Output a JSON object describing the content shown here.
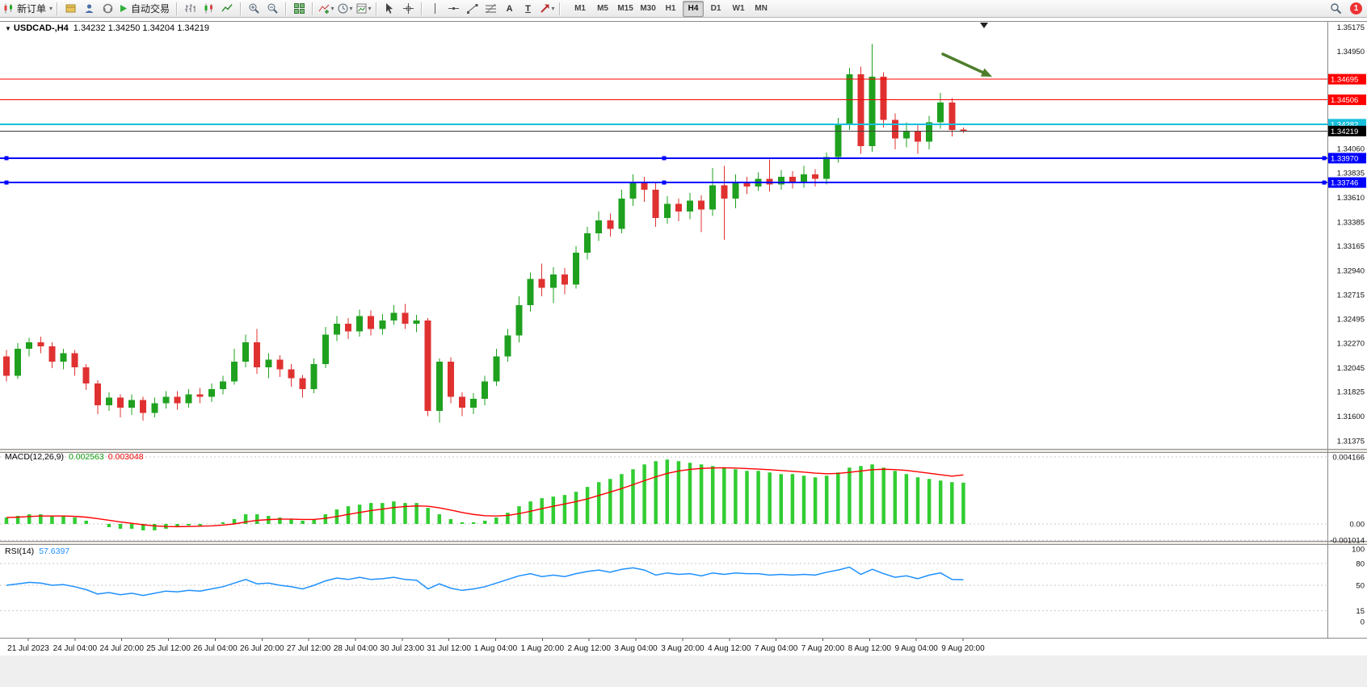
{
  "toolbar": {
    "new_order_label": "新订单",
    "auto_trading_label": "自动交易",
    "timeframes": [
      "M1",
      "M5",
      "M15",
      "M30",
      "H1",
      "H4",
      "D1",
      "W1",
      "MN"
    ],
    "active_timeframe": "H4",
    "notification_count": "1"
  },
  "chart": {
    "symbol_title": "USDCAD-,H4",
    "ohlc_text": "1.34232 1.34250 1.34204 1.34219"
  },
  "indicators": {
    "macd": {
      "label": "MACD(12,26,9)",
      "main_value": "0.002563",
      "signal_value": "0.003048",
      "axis_labels": [
        "0.004166",
        "0.00",
        "-0.001014"
      ],
      "axis_values": [
        0.004166,
        0,
        -0.001014
      ]
    },
    "rsi": {
      "label": "RSI(14)",
      "value": "57.6397",
      "axis_labels": [
        "100",
        "80",
        "50",
        "15",
        "0"
      ],
      "axis_values": [
        100,
        80,
        50,
        15,
        0
      ],
      "levels": [
        80,
        50,
        15
      ]
    }
  },
  "chart_data": {
    "type": "candlestick",
    "symbol": "USDCAD-",
    "timeframe": "H4",
    "price_axis": {
      "visible_min": 1.313,
      "visible_max": 1.35215,
      "grid_labels": [
        "1.35175",
        "1.34950",
        "1.34060",
        "1.33835",
        "1.33610",
        "1.33385",
        "1.33165",
        "1.32940",
        "1.32715",
        "1.32495",
        "1.32270",
        "1.32045",
        "1.31825",
        "1.31600",
        "1.31375"
      ],
      "grid_values": [
        1.35175,
        1.3495,
        1.3406,
        1.33835,
        1.3361,
        1.33385,
        1.33165,
        1.3294,
        1.32715,
        1.32495,
        1.3227,
        1.32045,
        1.31825,
        1.316,
        1.31375
      ]
    },
    "time_labels": [
      "21 Jul 2023",
      "24 Jul 04:00",
      "24 Jul 20:00",
      "25 Jul 12:00",
      "26 Jul 04:00",
      "26 Jul 20:00",
      "27 Jul 12:00",
      "28 Jul 04:00",
      "30 Jul 23:00",
      "31 Jul 12:00",
      "1 Aug 04:00",
      "1 Aug 20:00",
      "2 Aug 12:00",
      "3 Aug 04:00",
      "3 Aug 20:00",
      "4 Aug 12:00",
      "7 Aug 04:00",
      "7 Aug 20:00",
      "8 Aug 12:00",
      "9 Aug 04:00",
      "9 Aug 20:00"
    ],
    "hlines": [
      {
        "price": 1.34695,
        "label": "1.34695",
        "color": "#ff0000",
        "width": 1,
        "handles": false
      },
      {
        "price": 1.34506,
        "label": "1.34506",
        "color": "#ff0000",
        "width": 1,
        "handles": false
      },
      {
        "price": 1.34282,
        "label": "1.34282",
        "color": "#17bfdc",
        "width": 2,
        "handles": false
      },
      {
        "price": 1.34219,
        "label": "1.34219",
        "color": "#3c3c3c",
        "width": 1,
        "handles": false,
        "tag": "#000000",
        "is_current": true
      },
      {
        "price": 1.3397,
        "label": "1.33970",
        "color": "#0000ff",
        "width": 2,
        "handles": true
      },
      {
        "price": 1.33746,
        "label": "1.33746",
        "color": "#0000ff",
        "width": 2,
        "handles": true
      }
    ],
    "candles_ohlc": [
      [
        1.3215,
        1.3221,
        1.3192,
        1.3197
      ],
      [
        1.3197,
        1.3227,
        1.3194,
        1.3222
      ],
      [
        1.3222,
        1.3232,
        1.3215,
        1.3228
      ],
      [
        1.3228,
        1.3233,
        1.3218,
        1.3224
      ],
      [
        1.3224,
        1.3228,
        1.3204,
        1.321
      ],
      [
        1.321,
        1.3222,
        1.3203,
        1.3218
      ],
      [
        1.3218,
        1.3221,
        1.3197,
        1.3205
      ],
      [
        1.3205,
        1.3208,
        1.3184,
        1.319
      ],
      [
        1.319,
        1.3193,
        1.3162,
        1.317
      ],
      [
        1.317,
        1.3182,
        1.3165,
        1.3177
      ],
      [
        1.3177,
        1.318,
        1.3159,
        1.3168
      ],
      [
        1.3168,
        1.318,
        1.3161,
        1.3175
      ],
      [
        1.3175,
        1.3178,
        1.3156,
        1.3163
      ],
      [
        1.3163,
        1.3177,
        1.3159,
        1.3172
      ],
      [
        1.3172,
        1.3183,
        1.3167,
        1.3178
      ],
      [
        1.3178,
        1.3183,
        1.3166,
        1.3172
      ],
      [
        1.3172,
        1.3185,
        1.3168,
        1.318
      ],
      [
        1.318,
        1.3186,
        1.3172,
        1.3178
      ],
      [
        1.3178,
        1.319,
        1.3173,
        1.3185
      ],
      [
        1.3185,
        1.3197,
        1.318,
        1.3192
      ],
      [
        1.3192,
        1.3222,
        1.3189,
        1.321
      ],
      [
        1.321,
        1.3235,
        1.3205,
        1.3228
      ],
      [
        1.3228,
        1.324,
        1.3199,
        1.3205
      ],
      [
        1.3205,
        1.3218,
        1.3195,
        1.3212
      ],
      [
        1.3212,
        1.3216,
        1.3196,
        1.3203
      ],
      [
        1.3203,
        1.3208,
        1.3187,
        1.3195
      ],
      [
        1.3195,
        1.3198,
        1.3177,
        1.3185
      ],
      [
        1.3185,
        1.3213,
        1.3181,
        1.3208
      ],
      [
        1.3208,
        1.3242,
        1.3204,
        1.3235
      ],
      [
        1.3235,
        1.3252,
        1.3229,
        1.3245
      ],
      [
        1.3245,
        1.325,
        1.3231,
        1.3238
      ],
      [
        1.3238,
        1.3258,
        1.3233,
        1.3252
      ],
      [
        1.3252,
        1.3257,
        1.3234,
        1.324
      ],
      [
        1.324,
        1.3254,
        1.3235,
        1.3248
      ],
      [
        1.3248,
        1.3262,
        1.3244,
        1.3255
      ],
      [
        1.3255,
        1.3263,
        1.324,
        1.3245
      ],
      [
        1.3245,
        1.3253,
        1.3237,
        1.3248
      ],
      [
        1.3248,
        1.325,
        1.316,
        1.3165
      ],
      [
        1.3165,
        1.3213,
        1.3154,
        1.321
      ],
      [
        1.321,
        1.3214,
        1.3172,
        1.3178
      ],
      [
        1.3178,
        1.3182,
        1.316,
        1.3168
      ],
      [
        1.3168,
        1.3181,
        1.3162,
        1.3176
      ],
      [
        1.3176,
        1.3197,
        1.317,
        1.3192
      ],
      [
        1.3192,
        1.3222,
        1.3188,
        1.3215
      ],
      [
        1.3215,
        1.324,
        1.321,
        1.3234
      ],
      [
        1.3234,
        1.327,
        1.3228,
        1.3262
      ],
      [
        1.3262,
        1.3292,
        1.3256,
        1.3286
      ],
      [
        1.3286,
        1.33,
        1.327,
        1.3278
      ],
      [
        1.3278,
        1.3297,
        1.3264,
        1.329
      ],
      [
        1.329,
        1.3296,
        1.3272,
        1.3281
      ],
      [
        1.3281,
        1.3316,
        1.3277,
        1.331
      ],
      [
        1.331,
        1.3334,
        1.3304,
        1.3328
      ],
      [
        1.3328,
        1.3348,
        1.3321,
        1.334
      ],
      [
        1.334,
        1.3346,
        1.3325,
        1.3332
      ],
      [
        1.3332,
        1.3368,
        1.3328,
        1.336
      ],
      [
        1.336,
        1.3382,
        1.3353,
        1.3375
      ],
      [
        1.3375,
        1.338,
        1.3357,
        1.3368
      ],
      [
        1.3368,
        1.3374,
        1.3334,
        1.3342
      ],
      [
        1.3342,
        1.3362,
        1.3337,
        1.3355
      ],
      [
        1.3355,
        1.336,
        1.3339,
        1.3348
      ],
      [
        1.3348,
        1.3365,
        1.3341,
        1.3358
      ],
      [
        1.3358,
        1.3363,
        1.3329,
        1.335
      ],
      [
        1.335,
        1.3388,
        1.3344,
        1.3372
      ],
      [
        1.3372,
        1.339,
        1.3322,
        1.336
      ],
      [
        1.336,
        1.3382,
        1.3351,
        1.3375
      ],
      [
        1.3375,
        1.338,
        1.3364,
        1.3371
      ],
      [
        1.3371,
        1.3384,
        1.3367,
        1.3378
      ],
      [
        1.3378,
        1.3396,
        1.3366,
        1.3373
      ],
      [
        1.3373,
        1.3386,
        1.3368,
        1.338
      ],
      [
        1.338,
        1.3385,
        1.3369,
        1.3375
      ],
      [
        1.3375,
        1.339,
        1.337,
        1.3382
      ],
      [
        1.3382,
        1.3387,
        1.3371,
        1.3378
      ],
      [
        1.3378,
        1.3402,
        1.3373,
        1.3398
      ],
      [
        1.3398,
        1.3434,
        1.3393,
        1.3428
      ],
      [
        1.3428,
        1.348,
        1.3423,
        1.3474
      ],
      [
        1.3474,
        1.3481,
        1.3401,
        1.3408
      ],
      [
        1.3408,
        1.3502,
        1.3403,
        1.3472
      ],
      [
        1.3472,
        1.3476,
        1.3425,
        1.3432
      ],
      [
        1.3432,
        1.3438,
        1.3405,
        1.3415
      ],
      [
        1.3415,
        1.343,
        1.3407,
        1.3422
      ],
      [
        1.3422,
        1.3428,
        1.3401,
        1.3412
      ],
      [
        1.3412,
        1.3436,
        1.3405,
        1.343
      ],
      [
        1.343,
        1.3457,
        1.3424,
        1.3448
      ],
      [
        1.3448,
        1.3452,
        1.3417,
        1.3423
      ],
      [
        1.34232,
        1.3425,
        1.34204,
        1.34219
      ]
    ],
    "macd_main": [
      0.0004,
      0.0005,
      0.0006,
      0.0006,
      0.0005,
      0.0005,
      0.0004,
      0.0002,
      0.0,
      -0.0002,
      -0.0003,
      -0.0003,
      -0.0004,
      -0.0004,
      -0.0003,
      -0.0002,
      -0.0001,
      -0.0001,
      0.0,
      0.0001,
      0.0003,
      0.0006,
      0.0006,
      0.0005,
      0.0004,
      0.0003,
      0.0002,
      0.0003,
      0.0006,
      0.0009,
      0.0011,
      0.0012,
      0.0013,
      0.0013,
      0.0014,
      0.0013,
      0.0013,
      0.001,
      0.0006,
      0.0003,
      0.0001,
      0.0001,
      0.0002,
      0.0004,
      0.0007,
      0.0011,
      0.0014,
      0.0016,
      0.0017,
      0.0018,
      0.002,
      0.0023,
      0.0026,
      0.0028,
      0.0031,
      0.0034,
      0.0037,
      0.0039,
      0.004,
      0.0039,
      0.0038,
      0.0037,
      0.0036,
      0.0035,
      0.0034,
      0.0033,
      0.0033,
      0.0032,
      0.0031,
      0.0031,
      0.003,
      0.0029,
      0.003,
      0.0032,
      0.0035,
      0.0036,
      0.0037,
      0.0035,
      0.0033,
      0.0031,
      0.0029,
      0.0028,
      0.0027,
      0.0026,
      0.002563
    ],
    "macd_signal": [
      0.0004,
      0.00042,
      0.00046,
      0.00049,
      0.00049,
      0.00049,
      0.00047,
      0.00042,
      0.00033,
      0.00023,
      0.00012,
      4e-05,
      -5e-05,
      -0.00012,
      -0.00016,
      -0.00017,
      -0.00016,
      -0.00014,
      -0.00012,
      -7e-05,
      0.0,
      0.00012,
      0.00022,
      0.00027,
      0.0003,
      0.0003,
      0.00028,
      0.00028,
      0.00035,
      0.00046,
      0.00059,
      0.00071,
      0.00083,
      0.00092,
      0.00102,
      0.00108,
      0.00112,
      0.0011,
      0.001,
      0.00086,
      0.00071,
      0.00059,
      0.00051,
      0.00049,
      0.00053,
      0.00064,
      0.00079,
      0.00095,
      0.0011,
      0.00124,
      0.00139,
      0.00156,
      0.00177,
      0.00198,
      0.0022,
      0.00244,
      0.00269,
      0.00293,
      0.00314,
      0.00329,
      0.00339,
      0.00345,
      0.00348,
      0.00349,
      0.00347,
      0.00344,
      0.00341,
      0.00337,
      0.00332,
      0.00327,
      0.00322,
      0.00316,
      0.00312,
      0.00314,
      0.00321,
      0.00329,
      0.00337,
      0.0034,
      0.00338,
      0.00333,
      0.00324,
      0.00315,
      0.00306,
      0.00297,
      0.003048
    ],
    "rsi": [
      50,
      52,
      54,
      53,
      50,
      51,
      48,
      44,
      38,
      40,
      37,
      39,
      36,
      39,
      42,
      41,
      43,
      42,
      45,
      48,
      53,
      58,
      52,
      53,
      50,
      48,
      45,
      50,
      56,
      60,
      58,
      61,
      58,
      59,
      61,
      58,
      57,
      45,
      52,
      46,
      43,
      45,
      48,
      53,
      58,
      63,
      66,
      62,
      64,
      62,
      66,
      69,
      71,
      68,
      72,
      74,
      71,
      64,
      67,
      65,
      66,
      63,
      67,
      65,
      67,
      66,
      66,
      64,
      65,
      64,
      65,
      64,
      68,
      71,
      75,
      65,
      72,
      66,
      61,
      63,
      59,
      64,
      67,
      58,
      57.6397
    ],
    "arrow_annotation": {
      "from": [
        1167,
        67
      ],
      "to": [
        1228,
        95
      ],
      "color": "#4e7d2a"
    }
  }
}
